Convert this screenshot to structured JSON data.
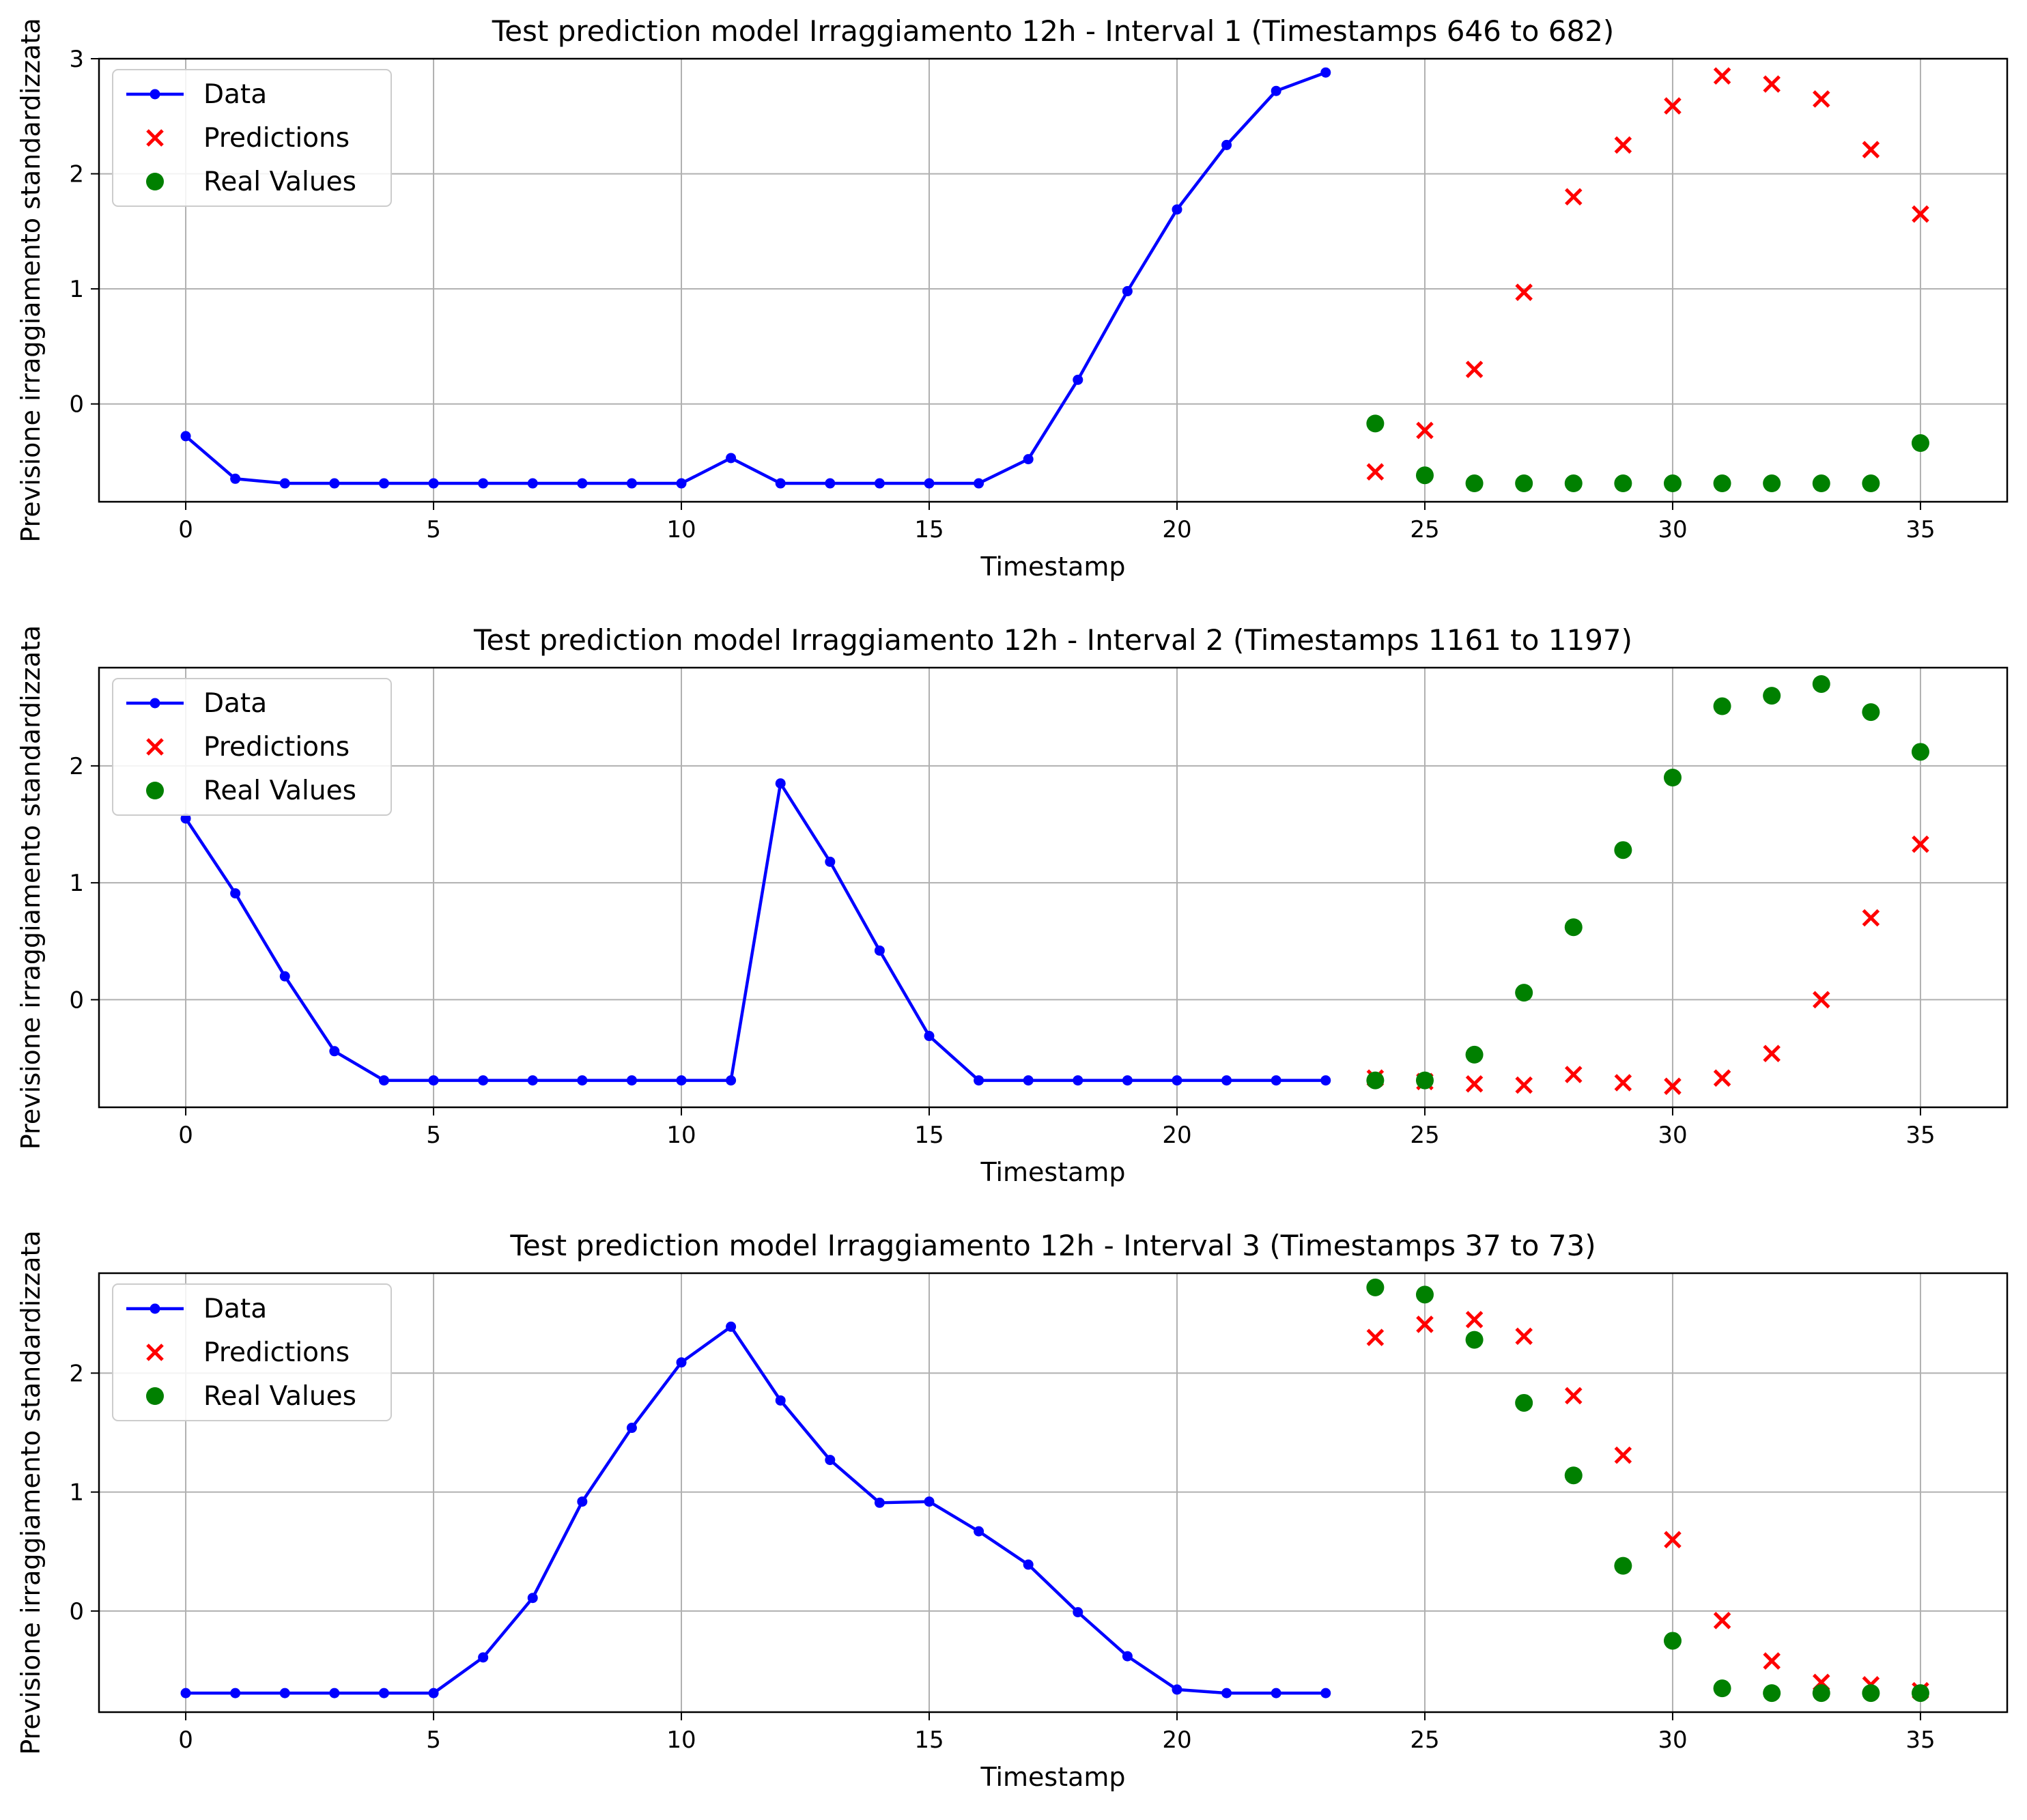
{
  "chart_data": [
    {
      "type": "line",
      "title": "Test prediction model Irraggiamento 12h - Interval 1 (Timestamps 646 to 682)",
      "xlabel": "Timestamp",
      "ylabel": "Previsione irraggiamento standardizzata",
      "xlim": [
        -1.75,
        36.75
      ],
      "ylim": [
        -0.85,
        3.0
      ],
      "xticks": [
        0,
        5,
        10,
        15,
        20,
        25,
        30,
        35
      ],
      "yticks": [
        0,
        1,
        2,
        3
      ],
      "grid": true,
      "legend": "top-left",
      "series": [
        {
          "name": "Data",
          "kind": "line",
          "color": "#0000ff",
          "x": [
            0,
            1,
            2,
            3,
            4,
            5,
            6,
            7,
            8,
            9,
            10,
            11,
            12,
            13,
            14,
            15,
            16,
            17,
            18,
            19,
            20,
            21,
            22,
            23
          ],
          "y": [
            -0.28,
            -0.65,
            -0.69,
            -0.69,
            -0.69,
            -0.69,
            -0.69,
            -0.69,
            -0.69,
            -0.69,
            -0.69,
            -0.47,
            -0.69,
            -0.69,
            -0.69,
            -0.69,
            -0.69,
            -0.48,
            0.21,
            0.98,
            1.69,
            2.25,
            2.72,
            2.88
          ]
        },
        {
          "name": "Predictions",
          "kind": "x",
          "color": "#ff0000",
          "x": [
            24,
            25,
            26,
            27,
            28,
            29,
            30,
            31,
            32,
            33,
            34,
            35
          ],
          "y": [
            -0.59,
            -0.23,
            0.3,
            0.97,
            1.8,
            2.25,
            2.59,
            2.85,
            2.78,
            2.65,
            2.21,
            1.65
          ]
        },
        {
          "name": "Real Values",
          "kind": "o",
          "color": "#008000",
          "x": [
            24,
            25,
            26,
            27,
            28,
            29,
            30,
            31,
            32,
            33,
            34,
            35
          ],
          "y": [
            -0.17,
            -0.62,
            -0.69,
            -0.69,
            -0.69,
            -0.69,
            -0.69,
            -0.69,
            -0.69,
            -0.69,
            -0.69,
            -0.34
          ]
        }
      ]
    },
    {
      "type": "line",
      "title": "Test prediction model Irraggiamento 12h - Interval 2 (Timestamps 1161 to 1197)",
      "xlabel": "Timestamp",
      "ylabel": "Previsione irraggiamento standardizzata",
      "xlim": [
        -1.75,
        36.75
      ],
      "ylim": [
        -0.92,
        2.84
      ],
      "xticks": [
        0,
        5,
        10,
        15,
        20,
        25,
        30,
        35
      ],
      "yticks": [
        0,
        1,
        2
      ],
      "grid": true,
      "legend": "top-left",
      "series": [
        {
          "name": "Data",
          "kind": "line",
          "color": "#0000ff",
          "x": [
            0,
            1,
            2,
            3,
            4,
            5,
            6,
            7,
            8,
            9,
            10,
            11,
            12,
            13,
            14,
            15,
            16,
            17,
            18,
            19,
            20,
            21,
            22,
            23
          ],
          "y": [
            1.55,
            0.91,
            0.2,
            -0.44,
            -0.69,
            -0.69,
            -0.69,
            -0.69,
            -0.69,
            -0.69,
            -0.69,
            -0.69,
            1.85,
            1.18,
            0.42,
            -0.31,
            -0.69,
            -0.69,
            -0.69,
            -0.69,
            -0.69,
            -0.69,
            -0.69,
            -0.69
          ]
        },
        {
          "name": "Predictions",
          "kind": "x",
          "color": "#ff0000",
          "x": [
            24,
            25,
            26,
            27,
            28,
            29,
            30,
            31,
            32,
            33,
            34,
            35
          ],
          "y": [
            -0.67,
            -0.7,
            -0.72,
            -0.73,
            -0.64,
            -0.71,
            -0.74,
            -0.67,
            -0.46,
            0.0,
            0.7,
            1.33
          ]
        },
        {
          "name": "Real Values",
          "kind": "o",
          "color": "#008000",
          "x": [
            24,
            25,
            26,
            27,
            28,
            29,
            30,
            31,
            32,
            33,
            34,
            35
          ],
          "y": [
            -0.69,
            -0.69,
            -0.47,
            0.06,
            0.62,
            1.28,
            1.9,
            2.51,
            2.6,
            2.7,
            2.46,
            2.12
          ]
        }
      ]
    },
    {
      "type": "line",
      "title": "Test prediction model Irraggiamento 12h - Interval 3 (Timestamps 37 to 73)",
      "xlabel": "Timestamp",
      "ylabel": "Previsione irraggiamento standardizzata",
      "xlim": [
        -1.75,
        36.75
      ],
      "ylim": [
        -0.85,
        2.84
      ],
      "xticks": [
        0,
        5,
        10,
        15,
        20,
        25,
        30,
        35
      ],
      "yticks": [
        0,
        1,
        2
      ],
      "grid": true,
      "legend": "top-left",
      "series": [
        {
          "name": "Data",
          "kind": "line",
          "color": "#0000ff",
          "x": [
            0,
            1,
            2,
            3,
            4,
            5,
            6,
            7,
            8,
            9,
            10,
            11,
            12,
            13,
            14,
            15,
            16,
            17,
            18,
            19,
            20,
            21,
            22,
            23
          ],
          "y": [
            -0.69,
            -0.69,
            -0.69,
            -0.69,
            -0.69,
            -0.69,
            -0.39,
            0.11,
            0.92,
            1.54,
            2.09,
            2.39,
            1.77,
            1.27,
            0.91,
            0.92,
            0.67,
            0.39,
            -0.01,
            -0.38,
            -0.66,
            -0.69,
            -0.69,
            -0.69
          ]
        },
        {
          "name": "Predictions",
          "kind": "x",
          "color": "#ff0000",
          "x": [
            24,
            25,
            26,
            27,
            28,
            29,
            30,
            31,
            32,
            33,
            34,
            35
          ],
          "y": [
            2.3,
            2.41,
            2.45,
            2.31,
            1.81,
            1.31,
            0.6,
            -0.08,
            -0.42,
            -0.6,
            -0.62,
            -0.67
          ]
        },
        {
          "name": "Real Values",
          "kind": "o",
          "color": "#008000",
          "x": [
            24,
            25,
            26,
            27,
            28,
            29,
            30,
            31,
            32,
            33,
            34,
            35
          ],
          "y": [
            2.72,
            2.66,
            2.28,
            1.75,
            1.14,
            0.38,
            -0.25,
            -0.65,
            -0.69,
            -0.69,
            -0.69,
            -0.69
          ]
        }
      ]
    }
  ]
}
